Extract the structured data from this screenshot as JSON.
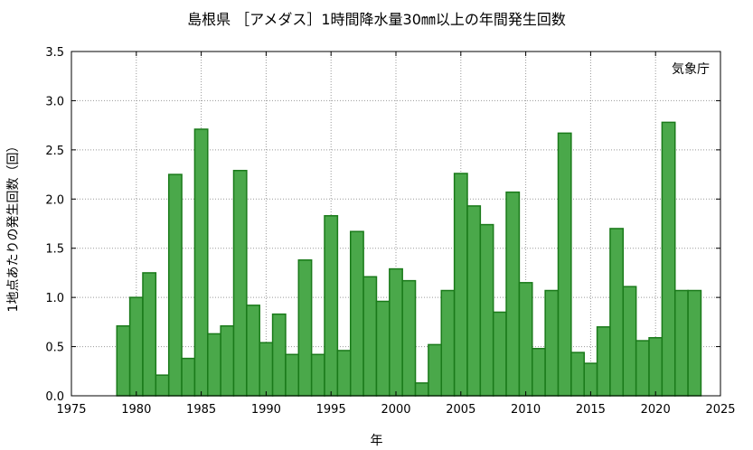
{
  "chart_data": {
    "type": "bar",
    "title": "島根県 ［アメダス］1時間降水量30㎜以上の年間発生回数",
    "xlabel": "年",
    "ylabel": "1地点あたりの発生回数（回）",
    "source_note": "気象庁",
    "xlim": [
      1975,
      2025
    ],
    "ylim": [
      0,
      3.5
    ],
    "x_ticks": [
      "1975",
      "1980",
      "1985",
      "1990",
      "1995",
      "2000",
      "2005",
      "2010",
      "2015",
      "2020",
      "2025"
    ],
    "y_ticks": [
      "0.0",
      "0.5",
      "1.0",
      "1.5",
      "2.0",
      "2.5",
      "3.0",
      "3.5"
    ],
    "grid": true,
    "bar_color": "#4aa84a",
    "bar_edge_color": "#1a7a1a",
    "x": [
      1979,
      1980,
      1981,
      1982,
      1983,
      1984,
      1985,
      1986,
      1987,
      1988,
      1989,
      1990,
      1991,
      1992,
      1993,
      1994,
      1995,
      1996,
      1997,
      1998,
      1999,
      2000,
      2001,
      2002,
      2003,
      2004,
      2005,
      2006,
      2007,
      2008,
      2009,
      2010,
      2011,
      2012,
      2013,
      2014,
      2015,
      2016,
      2017,
      2018,
      2019,
      2020,
      2021,
      2022,
      2023
    ],
    "values": [
      0.71,
      1.0,
      1.25,
      0.21,
      2.25,
      0.38,
      2.71,
      0.63,
      0.71,
      2.29,
      0.92,
      0.54,
      0.83,
      0.42,
      1.38,
      0.42,
      1.83,
      0.46,
      1.67,
      1.21,
      0.96,
      1.29,
      1.17,
      0.13,
      0.52,
      1.07,
      2.26,
      1.93,
      1.74,
      0.85,
      2.07,
      1.15,
      0.48,
      1.07,
      2.67,
      0.44,
      0.33,
      0.7,
      1.7,
      1.11,
      0.56,
      0.59,
      2.78,
      1.07,
      1.07
    ]
  }
}
